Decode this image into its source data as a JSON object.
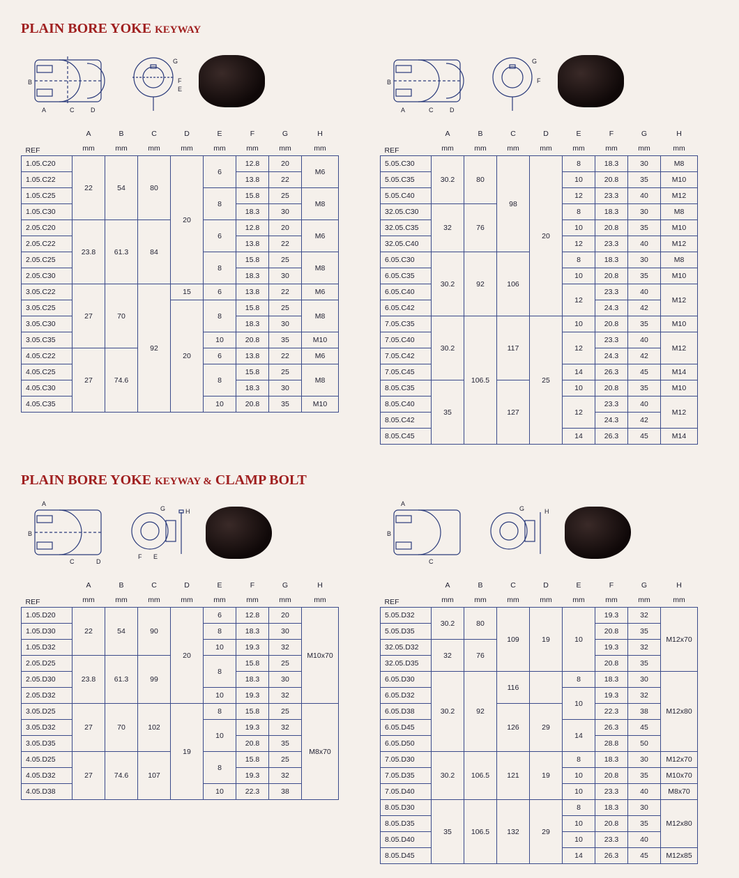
{
  "section1": {
    "title_main": "PLAIN BORE YOKE",
    "title_sub": "KEYWAY",
    "headers": [
      "REF",
      "A mm",
      "B mm",
      "C mm",
      "D mm",
      "E mm",
      "F mm",
      "G mm",
      "H mm"
    ],
    "tableLeft": [
      [
        "1.05.C20",
        "22",
        "54",
        "80",
        "20",
        "6",
        "12.8",
        "20",
        "M6"
      ],
      [
        "1.05.C22",
        "",
        "",
        "",
        "",
        "",
        "13.8",
        "22",
        ""
      ],
      [
        "1.05.C25",
        "",
        "",
        "",
        "",
        "8",
        "15.8",
        "25",
        "M8"
      ],
      [
        "1.05.C30",
        "",
        "",
        "",
        "",
        "",
        "18.3",
        "30",
        ""
      ],
      [
        "2.05.C20",
        "23.8",
        "61.3",
        "84",
        "",
        "6",
        "12.8",
        "20",
        "M6"
      ],
      [
        "2.05.C22",
        "",
        "",
        "",
        "",
        "",
        "13.8",
        "22",
        ""
      ],
      [
        "2.05.C25",
        "",
        "",
        "",
        "",
        "8",
        "15.8",
        "25",
        "M8"
      ],
      [
        "2.05.C30",
        "",
        "",
        "",
        "",
        "",
        "18.3",
        "30",
        ""
      ],
      [
        "3.05.C22",
        "27",
        "70",
        "92",
        "15",
        "6",
        "13.8",
        "22",
        "M6"
      ],
      [
        "3.05.C25",
        "",
        "",
        "",
        "20",
        "8",
        "15.8",
        "25",
        "M8"
      ],
      [
        "3.05.C30",
        "",
        "",
        "",
        "",
        "",
        "18.3",
        "30",
        ""
      ],
      [
        "3.05.C35",
        "",
        "",
        "",
        "",
        "10",
        "20.8",
        "35",
        "M10"
      ],
      [
        "4.05.C22",
        "27",
        "74.6",
        "",
        "",
        "6",
        "13.8",
        "22",
        "M6"
      ],
      [
        "4.05.C25",
        "",
        "",
        "",
        "",
        "8",
        "15.8",
        "25",
        "M8"
      ],
      [
        "4.05.C30",
        "",
        "",
        "",
        "",
        "",
        "18.3",
        "30",
        ""
      ],
      [
        "4.05.C35",
        "",
        "",
        "",
        "",
        "10",
        "20.8",
        "35",
        "M10"
      ]
    ],
    "spansLeft": {
      "A": [
        [
          0,
          4
        ],
        [
          4,
          4
        ],
        [
          8,
          4
        ],
        [
          12,
          4
        ]
      ],
      "B": [
        [
          0,
          4
        ],
        [
          4,
          4
        ],
        [
          8,
          4
        ],
        [
          12,
          4
        ]
      ],
      "C": [
        [
          0,
          4
        ],
        [
          4,
          4
        ],
        [
          8,
          8
        ]
      ],
      "D": [
        [
          0,
          8
        ],
        [
          8,
          1
        ],
        [
          9,
          7
        ]
      ],
      "E": [
        [
          0,
          2
        ],
        [
          2,
          2
        ],
        [
          4,
          2
        ],
        [
          6,
          2
        ],
        [
          8,
          1
        ],
        [
          9,
          2
        ],
        [
          11,
          1
        ],
        [
          12,
          1
        ],
        [
          13,
          2
        ],
        [
          15,
          1
        ]
      ],
      "H": [
        [
          0,
          2
        ],
        [
          2,
          2
        ],
        [
          4,
          2
        ],
        [
          6,
          2
        ],
        [
          8,
          1
        ],
        [
          9,
          2
        ],
        [
          11,
          1
        ],
        [
          12,
          1
        ],
        [
          13,
          2
        ],
        [
          15,
          1
        ]
      ]
    },
    "tableRight": [
      [
        "5.05.C30",
        "30.2",
        "80",
        "98",
        "20",
        "8",
        "18.3",
        "30",
        "M8"
      ],
      [
        "5.05.C35",
        "",
        "",
        "",
        "",
        "10",
        "20.8",
        "35",
        "M10"
      ],
      [
        "5.05.C40",
        "",
        "",
        "",
        "",
        "12",
        "23.3",
        "40",
        "M12"
      ],
      [
        "32.05.C30",
        "32",
        "76",
        "",
        "",
        "8",
        "18.3",
        "30",
        "M8"
      ],
      [
        "32.05.C35",
        "",
        "",
        "",
        "",
        "10",
        "20.8",
        "35",
        "M10"
      ],
      [
        "32.05.C40",
        "",
        "",
        "",
        "",
        "12",
        "23.3",
        "40",
        "M12"
      ],
      [
        "6.05.C30",
        "30.2",
        "92",
        "106",
        "",
        "8",
        "18.3",
        "30",
        "M8"
      ],
      [
        "6.05.C35",
        "",
        "",
        "",
        "",
        "10",
        "20.8",
        "35",
        "M10"
      ],
      [
        "6.05.C40",
        "",
        "",
        "",
        "",
        "12",
        "23.3",
        "40",
        "M12"
      ],
      [
        "6.05.C42",
        "",
        "",
        "",
        "",
        "",
        "24.3",
        "42",
        ""
      ],
      [
        "7.05.C35",
        "30.2",
        "106.5",
        "117",
        "25",
        "10",
        "20.8",
        "35",
        "M10"
      ],
      [
        "7.05.C40",
        "",
        "",
        "",
        "",
        "12",
        "23.3",
        "40",
        "M12"
      ],
      [
        "7.05.C42",
        "",
        "",
        "",
        "",
        "",
        "24.3",
        "42",
        ""
      ],
      [
        "7.05.C45",
        "",
        "",
        "",
        "",
        "14",
        "26.3",
        "45",
        "M14"
      ],
      [
        "8.05.C35",
        "35",
        "",
        "127",
        "",
        "10",
        "20.8",
        "35",
        "M10"
      ],
      [
        "8.05.C40",
        "",
        "",
        "",
        "",
        "12",
        "23.3",
        "40",
        "M12"
      ],
      [
        "8.05.C42",
        "",
        "",
        "",
        "",
        "",
        "24.3",
        "42",
        ""
      ],
      [
        "8.05.C45",
        "",
        "",
        "",
        "",
        "14",
        "26.3",
        "45",
        "M14"
      ]
    ],
    "spansRight": {
      "A": [
        [
          0,
          3
        ],
        [
          3,
          3
        ],
        [
          6,
          4
        ],
        [
          10,
          4
        ],
        [
          14,
          4
        ]
      ],
      "B": [
        [
          0,
          3
        ],
        [
          3,
          3
        ],
        [
          6,
          4
        ],
        [
          10,
          8
        ]
      ],
      "C": [
        [
          0,
          6
        ],
        [
          6,
          4
        ],
        [
          10,
          4
        ],
        [
          14,
          4
        ]
      ],
      "D": [
        [
          0,
          10
        ],
        [
          10,
          8
        ]
      ],
      "E": [
        [
          0,
          1
        ],
        [
          1,
          1
        ],
        [
          2,
          1
        ],
        [
          3,
          1
        ],
        [
          4,
          1
        ],
        [
          5,
          1
        ],
        [
          6,
          1
        ],
        [
          7,
          1
        ],
        [
          8,
          2
        ],
        [
          10,
          1
        ],
        [
          11,
          2
        ],
        [
          13,
          1
        ],
        [
          14,
          1
        ],
        [
          15,
          2
        ],
        [
          17,
          1
        ]
      ],
      "H": [
        [
          0,
          1
        ],
        [
          1,
          1
        ],
        [
          2,
          1
        ],
        [
          3,
          1
        ],
        [
          4,
          1
        ],
        [
          5,
          1
        ],
        [
          6,
          1
        ],
        [
          7,
          1
        ],
        [
          8,
          2
        ],
        [
          10,
          1
        ],
        [
          11,
          2
        ],
        [
          13,
          1
        ],
        [
          14,
          1
        ],
        [
          15,
          2
        ],
        [
          17,
          1
        ]
      ]
    }
  },
  "section2": {
    "title_main": "PLAIN BORE YOKE",
    "title_mid": "KEYWAY &",
    "title_sub": "CLAMP BOLT",
    "headers": [
      "REF",
      "A mm",
      "B mm",
      "C mm",
      "D mm",
      "E mm",
      "F mm",
      "G mm",
      "H mm"
    ],
    "tableLeft": [
      [
        "1.05.D20",
        "22",
        "54",
        "90",
        "20",
        "6",
        "12.8",
        "20",
        "M10x70"
      ],
      [
        "1.05.D30",
        "",
        "",
        "",
        "",
        "8",
        "18.3",
        "30",
        ""
      ],
      [
        "1.05.D32",
        "",
        "",
        "",
        "",
        "10",
        "19.3",
        "32",
        ""
      ],
      [
        "2.05.D25",
        "23.8",
        "61.3",
        "99",
        "",
        "8",
        "15.8",
        "25",
        ""
      ],
      [
        "2.05.D30",
        "",
        "",
        "",
        "",
        "",
        "18.3",
        "30",
        ""
      ],
      [
        "2.05.D32",
        "",
        "",
        "",
        "",
        "10",
        "19.3",
        "32",
        ""
      ],
      [
        "3.05.D25",
        "27",
        "70",
        "102",
        "19",
        "8",
        "15.8",
        "25",
        "M8x70"
      ],
      [
        "3.05.D32",
        "",
        "",
        "",
        "",
        "10",
        "19.3",
        "32",
        ""
      ],
      [
        "3.05.D35",
        "",
        "",
        "",
        "",
        "",
        "20.8",
        "35",
        ""
      ],
      [
        "4.05.D25",
        "27",
        "74.6",
        "107",
        "",
        "8",
        "15.8",
        "25",
        ""
      ],
      [
        "4.05.D32",
        "",
        "",
        "",
        "",
        "",
        "19.3",
        "32",
        ""
      ],
      [
        "4.05.D38",
        "",
        "",
        "",
        "",
        "10",
        "22.3",
        "38",
        ""
      ]
    ],
    "spansLeft": {
      "A": [
        [
          0,
          3
        ],
        [
          3,
          3
        ],
        [
          6,
          3
        ],
        [
          9,
          3
        ]
      ],
      "B": [
        [
          0,
          3
        ],
        [
          3,
          3
        ],
        [
          6,
          3
        ],
        [
          9,
          3
        ]
      ],
      "C": [
        [
          0,
          3
        ],
        [
          3,
          3
        ],
        [
          6,
          3
        ],
        [
          9,
          3
        ]
      ],
      "D": [
        [
          0,
          6
        ],
        [
          6,
          6
        ]
      ],
      "E": [
        [
          0,
          1
        ],
        [
          1,
          1
        ],
        [
          2,
          1
        ],
        [
          3,
          2
        ],
        [
          5,
          1
        ],
        [
          6,
          1
        ],
        [
          7,
          2
        ],
        [
          9,
          2
        ],
        [
          11,
          1
        ]
      ],
      "H": [
        [
          0,
          6
        ],
        [
          6,
          6
        ]
      ]
    },
    "tableRight": [
      [
        "5.05.D32",
        "30.2",
        "80",
        "109",
        "19",
        "10",
        "19.3",
        "32",
        "M12x70"
      ],
      [
        "5.05.D35",
        "",
        "",
        "",
        "",
        "",
        "20.8",
        "35",
        ""
      ],
      [
        "32.05.D32",
        "32",
        "76",
        "",
        "",
        "",
        "19.3",
        "32",
        ""
      ],
      [
        "32.05.D35",
        "",
        "",
        "",
        "",
        "",
        "20.8",
        "35",
        ""
      ],
      [
        "6.05.D30",
        "30.2",
        "92",
        "116",
        "",
        "8",
        "18.3",
        "30",
        "M12x80"
      ],
      [
        "6.05.D32",
        "",
        "",
        "",
        "",
        "10",
        "19.3",
        "32",
        ""
      ],
      [
        "6.05.D38",
        "",
        "",
        "126",
        "29",
        "",
        "22.3",
        "38",
        ""
      ],
      [
        "6.05.D45",
        "",
        "",
        "",
        "",
        "14",
        "26.3",
        "45",
        ""
      ],
      [
        "6.05.D50",
        "",
        "",
        "",
        "",
        "",
        "28.8",
        "50",
        ""
      ],
      [
        "7.05.D30",
        "30.2",
        "106.5",
        "121",
        "19",
        "8",
        "18.3",
        "30",
        "M12x70"
      ],
      [
        "7.05.D35",
        "",
        "",
        "",
        "",
        "10",
        "20.8",
        "35",
        "M10x70"
      ],
      [
        "7.05.D40",
        "",
        "",
        "",
        "",
        "10",
        "23.3",
        "40",
        "M8x70"
      ],
      [
        "8.05.D30",
        "35",
        "106.5",
        "132",
        "29",
        "8",
        "18.3",
        "30",
        "M12x80"
      ],
      [
        "8.05.D35",
        "",
        "",
        "",
        "",
        "10",
        "20.8",
        "35",
        ""
      ],
      [
        "8.05.D40",
        "",
        "",
        "",
        "",
        "10",
        "23.3",
        "40",
        ""
      ],
      [
        "8.05.D45",
        "",
        "",
        "",
        "",
        "14",
        "26.3",
        "45",
        "M12x85"
      ]
    ],
    "spansRight": {
      "A": [
        [
          0,
          2
        ],
        [
          2,
          2
        ],
        [
          4,
          5
        ],
        [
          9,
          3
        ],
        [
          12,
          4
        ]
      ],
      "B": [
        [
          0,
          2
        ],
        [
          2,
          2
        ],
        [
          4,
          5
        ],
        [
          9,
          3
        ],
        [
          12,
          4
        ]
      ],
      "C": [
        [
          0,
          4
        ],
        [
          4,
          2
        ],
        [
          6,
          3
        ],
        [
          9,
          3
        ],
        [
          12,
          4
        ]
      ],
      "D": [
        [
          0,
          4
        ],
        [
          4,
          2
        ],
        [
          6,
          3
        ],
        [
          9,
          3
        ],
        [
          12,
          4
        ]
      ],
      "E": [
        [
          0,
          4
        ],
        [
          4,
          1
        ],
        [
          5,
          2
        ],
        [
          7,
          2
        ],
        [
          9,
          1
        ],
        [
          10,
          1
        ],
        [
          11,
          1
        ],
        [
          12,
          1
        ],
        [
          13,
          1
        ],
        [
          14,
          1
        ],
        [
          15,
          1
        ]
      ],
      "H": [
        [
          0,
          4
        ],
        [
          4,
          5
        ],
        [
          9,
          1
        ],
        [
          10,
          1
        ],
        [
          11,
          1
        ],
        [
          12,
          3
        ],
        [
          15,
          1
        ]
      ]
    }
  },
  "style": {
    "title_color": "#a02020",
    "border_color": "#3a4a8a",
    "bg": "#f5f0eb"
  }
}
